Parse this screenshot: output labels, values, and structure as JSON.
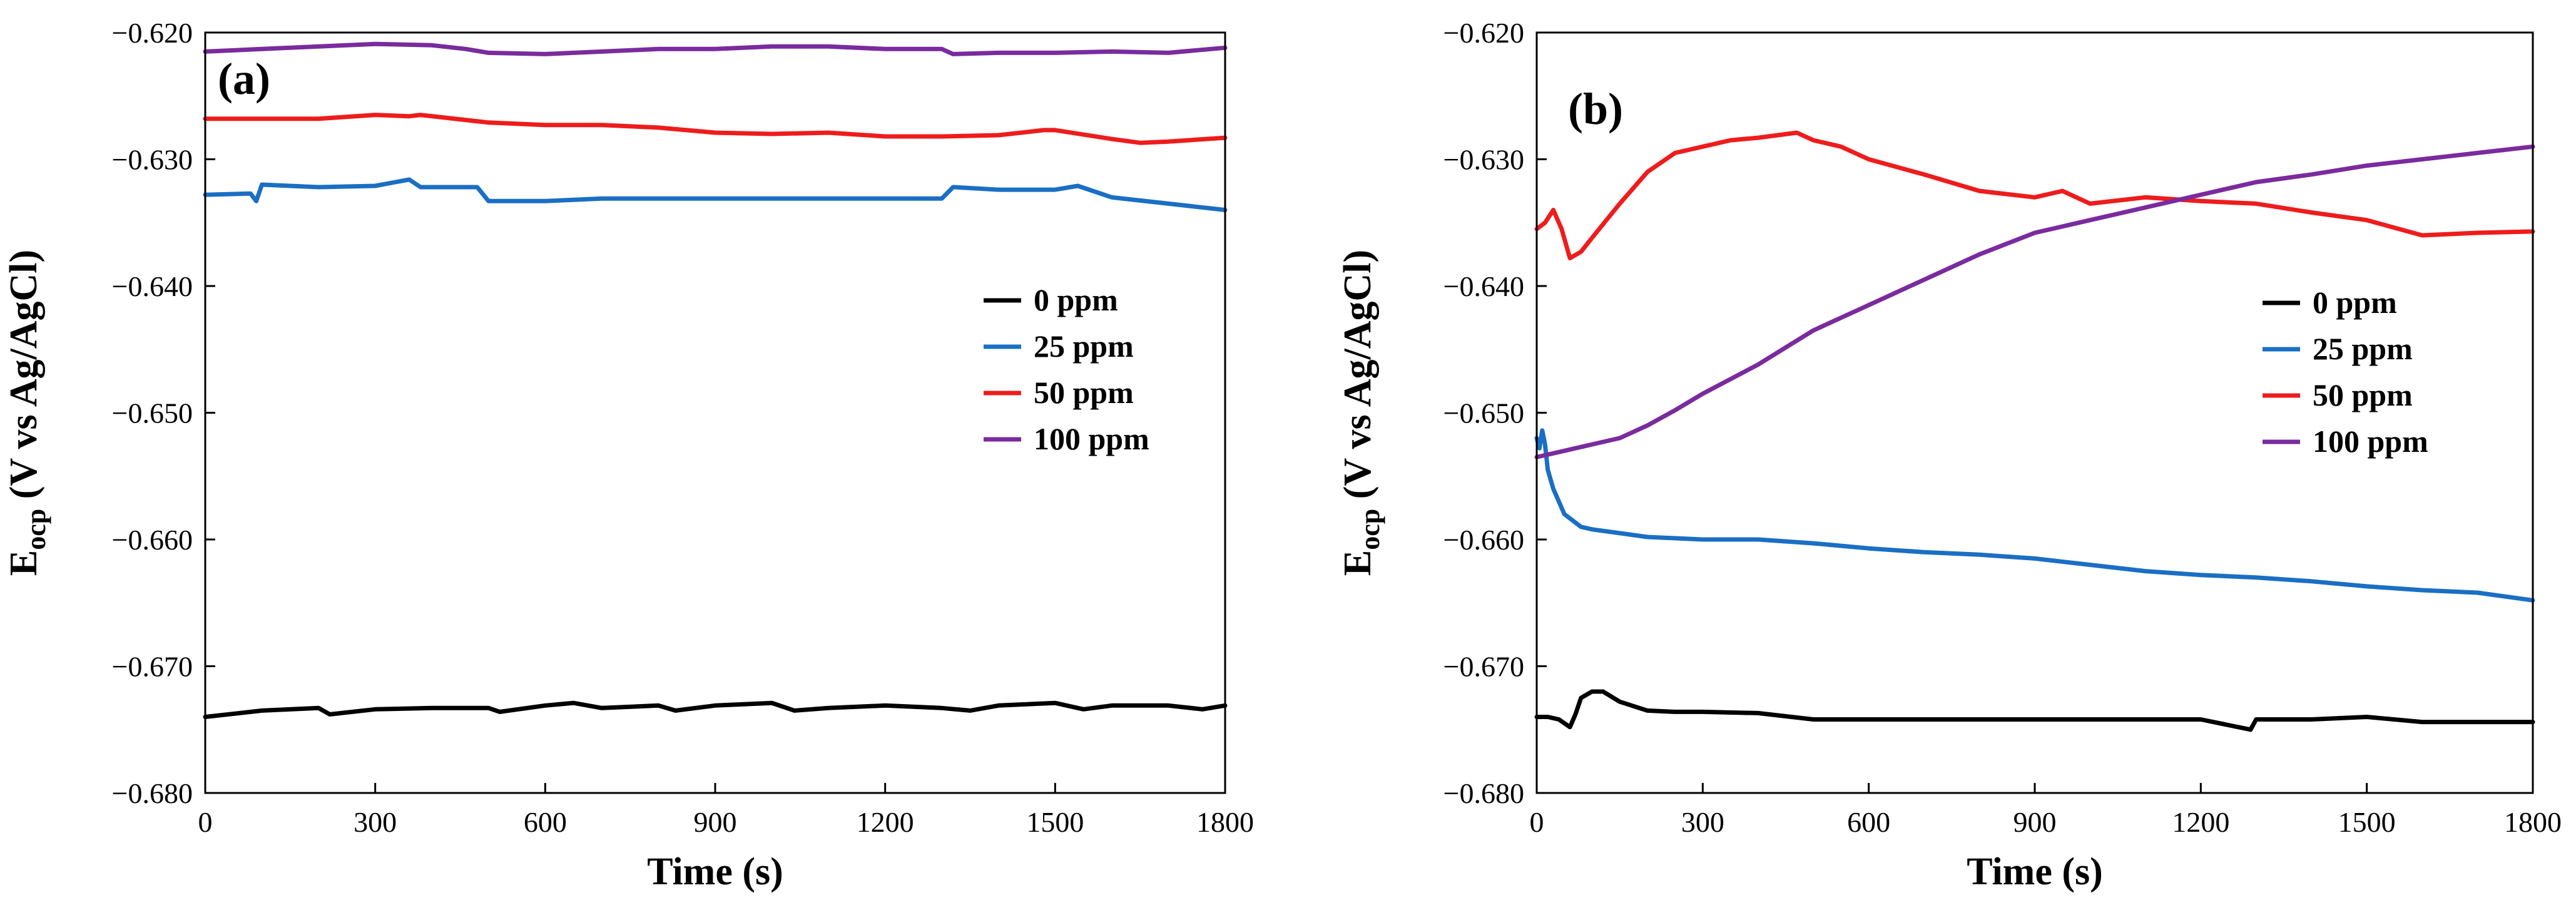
{
  "chart_data": [
    {
      "type": "line",
      "panel_label": "(a)",
      "xlabel": "Time (s)",
      "ylabel_main": "E",
      "ylabel_sub": "ocp",
      "ylabel_rest": " (V vs Ag/AgCl)",
      "xlim": [
        0,
        1800
      ],
      "ylim": [
        -0.68,
        -0.62
      ],
      "xticks": [
        0,
        300,
        600,
        900,
        1200,
        1500,
        1800
      ],
      "yticks": [
        -0.68,
        -0.67,
        -0.66,
        -0.65,
        -0.64,
        -0.63,
        -0.62
      ],
      "xtick_labels": [
        "0",
        "300",
        "600",
        "900",
        "1200",
        "1500",
        "1800"
      ],
      "ytick_labels": [
        "−0.680",
        "−0.670",
        "−0.660",
        "−0.650",
        "−0.640",
        "−0.630",
        "−0.620"
      ],
      "legend_position": "center-right",
      "series": [
        {
          "name": "0 ppm",
          "color": "#000000",
          "x": [
            0,
            100,
            200,
            220,
            300,
            400,
            500,
            520,
            600,
            650,
            700,
            800,
            830,
            900,
            1000,
            1040,
            1100,
            1200,
            1300,
            1350,
            1400,
            1500,
            1550,
            1600,
            1700,
            1760,
            1800
          ],
          "y": [
            -0.674,
            -0.6735,
            -0.6733,
            -0.6738,
            -0.6734,
            -0.6733,
            -0.6733,
            -0.6736,
            -0.6731,
            -0.6729,
            -0.6733,
            -0.6731,
            -0.6735,
            -0.6731,
            -0.6729,
            -0.6735,
            -0.6733,
            -0.6731,
            -0.6733,
            -0.6735,
            -0.6731,
            -0.6729,
            -0.6734,
            -0.6731,
            -0.6731,
            -0.6734,
            -0.6731
          ]
        },
        {
          "name": "25 ppm",
          "color": "#1a6fc4",
          "x": [
            0,
            80,
            90,
            100,
            200,
            300,
            360,
            380,
            480,
            500,
            600,
            700,
            800,
            900,
            1000,
            1100,
            1200,
            1300,
            1320,
            1400,
            1500,
            1540,
            1600,
            1700,
            1800
          ],
          "y": [
            -0.6328,
            -0.6327,
            -0.6333,
            -0.632,
            -0.6322,
            -0.6321,
            -0.6316,
            -0.6322,
            -0.6322,
            -0.6333,
            -0.6333,
            -0.6331,
            -0.6331,
            -0.6331,
            -0.6331,
            -0.6331,
            -0.6331,
            -0.6331,
            -0.6322,
            -0.6324,
            -0.6324,
            -0.6321,
            -0.633,
            -0.6335,
            -0.634
          ]
        },
        {
          "name": "50 ppm",
          "color": "#ee1c1c",
          "x": [
            0,
            100,
            200,
            300,
            360,
            380,
            500,
            600,
            700,
            800,
            900,
            1000,
            1100,
            1200,
            1300,
            1400,
            1480,
            1500,
            1600,
            1650,
            1700,
            1800
          ],
          "y": [
            -0.6268,
            -0.6268,
            -0.6268,
            -0.6265,
            -0.6266,
            -0.6265,
            -0.6271,
            -0.6273,
            -0.6273,
            -0.6275,
            -0.6279,
            -0.628,
            -0.6279,
            -0.6282,
            -0.6282,
            -0.6281,
            -0.6277,
            -0.6277,
            -0.6284,
            -0.6287,
            -0.6286,
            -0.6283
          ]
        },
        {
          "name": "100 ppm",
          "color": "#7a2b9e",
          "x": [
            0,
            100,
            200,
            300,
            400,
            460,
            500,
            600,
            700,
            800,
            900,
            1000,
            1100,
            1200,
            1300,
            1320,
            1400,
            1500,
            1600,
            1700,
            1800
          ],
          "y": [
            -0.6215,
            -0.6213,
            -0.6211,
            -0.6209,
            -0.621,
            -0.6213,
            -0.6216,
            -0.6217,
            -0.6215,
            -0.6213,
            -0.6213,
            -0.6211,
            -0.6211,
            -0.6213,
            -0.6213,
            -0.6217,
            -0.6216,
            -0.6216,
            -0.6215,
            -0.6216,
            -0.6212
          ]
        }
      ]
    },
    {
      "type": "line",
      "panel_label": "(b)",
      "xlabel": "Time (s)",
      "ylabel_main": "E",
      "ylabel_sub": "ocp",
      "ylabel_rest": " (V vs Ag/AgCl)",
      "xlim": [
        0,
        1800
      ],
      "ylim": [
        -0.68,
        -0.62
      ],
      "xticks": [
        0,
        300,
        600,
        900,
        1200,
        1500,
        1800
      ],
      "yticks": [
        -0.68,
        -0.67,
        -0.66,
        -0.65,
        -0.64,
        -0.63,
        -0.62
      ],
      "xtick_labels": [
        "0",
        "300",
        "600",
        "900",
        "1200",
        "1500",
        "1800"
      ],
      "ytick_labels": [
        "−0.680",
        "−0.670",
        "−0.660",
        "−0.650",
        "−0.640",
        "−0.630",
        "−0.620"
      ],
      "legend_position": "center-right",
      "series": [
        {
          "name": "0 ppm",
          "color": "#000000",
          "x": [
            0,
            20,
            40,
            60,
            70,
            80,
            100,
            120,
            150,
            200,
            250,
            300,
            400,
            500,
            600,
            700,
            800,
            900,
            1000,
            1100,
            1200,
            1290,
            1300,
            1400,
            1500,
            1600,
            1700,
            1800
          ],
          "y": [
            -0.674,
            -0.674,
            -0.6742,
            -0.6748,
            -0.6738,
            -0.6725,
            -0.672,
            -0.672,
            -0.6728,
            -0.6735,
            -0.6736,
            -0.6736,
            -0.6737,
            -0.6742,
            -0.6742,
            -0.6742,
            -0.6742,
            -0.6742,
            -0.6742,
            -0.6742,
            -0.6742,
            -0.675,
            -0.6742,
            -0.6742,
            -0.674,
            -0.6744,
            -0.6744,
            -0.6744
          ]
        },
        {
          "name": "25 ppm",
          "color": "#1a6fc4",
          "x": [
            0,
            5,
            10,
            15,
            20,
            30,
            50,
            80,
            100,
            150,
            200,
            300,
            400,
            500,
            600,
            700,
            800,
            900,
            1000,
            1100,
            1200,
            1300,
            1400,
            1500,
            1600,
            1700,
            1800
          ],
          "y": [
            -0.652,
            -0.6528,
            -0.6514,
            -0.6525,
            -0.6545,
            -0.656,
            -0.658,
            -0.659,
            -0.6592,
            -0.6595,
            -0.6598,
            -0.66,
            -0.66,
            -0.6603,
            -0.6607,
            -0.661,
            -0.6612,
            -0.6615,
            -0.662,
            -0.6625,
            -0.6628,
            -0.663,
            -0.6633,
            -0.6637,
            -0.664,
            -0.6642,
            -0.6648
          ]
        },
        {
          "name": "50 ppm",
          "color": "#ee1c1c",
          "x": [
            0,
            15,
            30,
            45,
            60,
            80,
            100,
            150,
            200,
            250,
            300,
            350,
            400,
            470,
            500,
            550,
            600,
            700,
            800,
            900,
            950,
            1000,
            1100,
            1200,
            1300,
            1400,
            1500,
            1600,
            1700,
            1800
          ],
          "y": [
            -0.6355,
            -0.635,
            -0.634,
            -0.6355,
            -0.6378,
            -0.6373,
            -0.6362,
            -0.6335,
            -0.631,
            -0.6295,
            -0.629,
            -0.6285,
            -0.6283,
            -0.6279,
            -0.6285,
            -0.629,
            -0.63,
            -0.6312,
            -0.6325,
            -0.633,
            -0.6325,
            -0.6335,
            -0.633,
            -0.6333,
            -0.6335,
            -0.6342,
            -0.6348,
            -0.636,
            -0.6358,
            -0.6357
          ]
        },
        {
          "name": "100 ppm",
          "color": "#7a2b9e",
          "x": [
            0,
            50,
            100,
            150,
            200,
            250,
            300,
            400,
            500,
            600,
            700,
            800,
            900,
            1000,
            1100,
            1200,
            1300,
            1400,
            1500,
            1600,
            1700,
            1800
          ],
          "y": [
            -0.6535,
            -0.653,
            -0.6525,
            -0.652,
            -0.651,
            -0.6498,
            -0.6485,
            -0.6462,
            -0.6435,
            -0.6415,
            -0.6395,
            -0.6375,
            -0.6358,
            -0.6348,
            -0.6338,
            -0.6328,
            -0.6318,
            -0.6312,
            -0.6305,
            -0.63,
            -0.6295,
            -0.629
          ]
        }
      ]
    }
  ]
}
